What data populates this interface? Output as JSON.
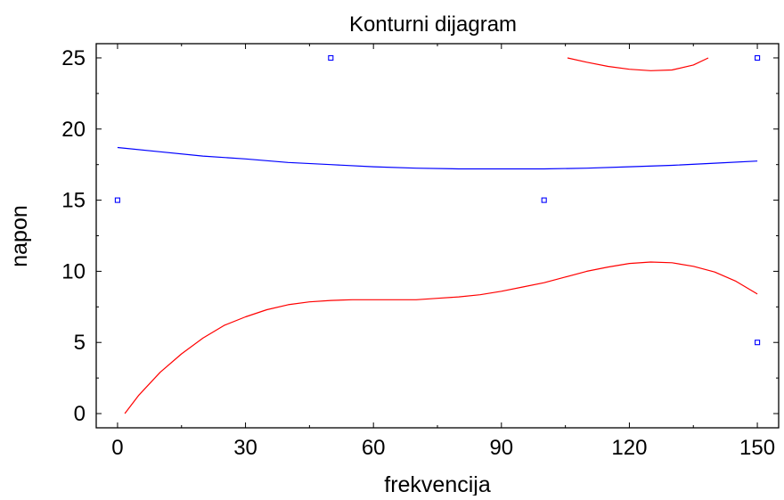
{
  "chart_data": {
    "type": "line",
    "title": "Konturni dijagram",
    "xlabel": "frekvencija",
    "ylabel": "napon",
    "xlim": [
      -5,
      155
    ],
    "ylim": [
      -1,
      26
    ],
    "x_ticks": [
      0,
      30,
      60,
      90,
      120,
      150
    ],
    "y_ticks": [
      0,
      5,
      10,
      15,
      20,
      25
    ],
    "grid": false,
    "colors": {
      "red": "#ff0000",
      "blue": "#0000ff",
      "axis": "#000000"
    },
    "series": [
      {
        "color": "#ff0000",
        "points": [
          [
            1.7,
            0.0
          ],
          [
            5,
            1.3
          ],
          [
            10,
            2.9
          ],
          [
            15,
            4.2
          ],
          [
            20,
            5.3
          ],
          [
            25,
            6.2
          ],
          [
            30,
            6.8
          ],
          [
            35,
            7.3
          ],
          [
            40,
            7.65
          ],
          [
            45,
            7.85
          ],
          [
            50,
            7.95
          ],
          [
            55,
            8.0
          ],
          [
            60,
            8.0
          ],
          [
            65,
            8.0
          ],
          [
            70,
            8.0
          ],
          [
            75,
            8.1
          ],
          [
            80,
            8.2
          ],
          [
            85,
            8.35
          ],
          [
            90,
            8.6
          ],
          [
            95,
            8.9
          ],
          [
            100,
            9.2
          ],
          [
            105,
            9.6
          ],
          [
            110,
            10.0
          ],
          [
            115,
            10.3
          ],
          [
            120,
            10.55
          ],
          [
            125,
            10.65
          ],
          [
            130,
            10.6
          ],
          [
            135,
            10.35
          ],
          [
            140,
            9.95
          ],
          [
            145,
            9.3
          ],
          [
            150,
            8.4
          ]
        ]
      },
      {
        "color": "#ff0000",
        "points": [
          [
            105.5,
            25.0
          ],
          [
            110,
            24.7
          ],
          [
            115,
            24.4
          ],
          [
            120,
            24.2
          ],
          [
            125,
            24.1
          ],
          [
            130,
            24.15
          ],
          [
            135,
            24.5
          ],
          [
            138.5,
            25.0
          ]
        ]
      },
      {
        "color": "#0000ff",
        "points": [
          [
            0,
            18.7
          ],
          [
            10,
            18.4
          ],
          [
            20,
            18.1
          ],
          [
            30,
            17.9
          ],
          [
            40,
            17.65
          ],
          [
            50,
            17.5
          ],
          [
            60,
            17.35
          ],
          [
            70,
            17.25
          ],
          [
            80,
            17.2
          ],
          [
            90,
            17.2
          ],
          [
            100,
            17.2
          ],
          [
            110,
            17.25
          ],
          [
            120,
            17.35
          ],
          [
            130,
            17.45
          ],
          [
            140,
            17.6
          ],
          [
            150,
            17.75
          ]
        ]
      }
    ],
    "markers": [
      {
        "x": 0,
        "y": 15
      },
      {
        "x": 50,
        "y": 25
      },
      {
        "x": 100,
        "y": 15
      },
      {
        "x": 150,
        "y": 25
      },
      {
        "x": 150,
        "y": 5
      }
    ]
  }
}
